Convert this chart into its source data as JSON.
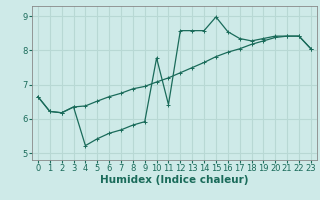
{
  "xlabel": "Humidex (Indice chaleur)",
  "bg_color": "#ceeae8",
  "grid_color": "#b8d8d4",
  "line_color": "#1a6b5a",
  "spine_color": "#888888",
  "xlim": [
    -0.5,
    23.5
  ],
  "ylim": [
    4.8,
    9.3
  ],
  "xticks": [
    0,
    1,
    2,
    3,
    4,
    5,
    6,
    7,
    8,
    9,
    10,
    11,
    12,
    13,
    14,
    15,
    16,
    17,
    18,
    19,
    20,
    21,
    22,
    23
  ],
  "yticks": [
    5,
    6,
    7,
    8,
    9
  ],
  "line1_x": [
    0,
    1,
    2,
    3,
    4,
    5,
    6,
    7,
    8,
    9,
    10,
    11,
    12,
    13,
    14,
    15,
    16,
    17,
    18,
    19,
    20,
    21,
    22,
    23
  ],
  "line1_y": [
    6.65,
    6.22,
    6.18,
    6.35,
    6.38,
    6.52,
    6.65,
    6.75,
    6.88,
    6.95,
    7.08,
    7.2,
    7.35,
    7.5,
    7.65,
    7.82,
    7.95,
    8.05,
    8.18,
    8.28,
    8.38,
    8.42,
    8.42,
    8.05
  ],
  "line2_x": [
    0,
    1,
    2,
    3,
    4,
    5,
    6,
    7,
    8,
    9,
    10,
    11,
    12,
    13,
    14,
    15,
    16,
    17,
    18,
    19,
    20,
    21,
    22,
    23
  ],
  "line2_y": [
    6.65,
    6.22,
    6.18,
    6.35,
    5.22,
    5.42,
    5.58,
    5.68,
    5.82,
    5.92,
    7.78,
    6.42,
    8.58,
    8.58,
    8.58,
    8.98,
    8.55,
    8.35,
    8.28,
    8.35,
    8.42,
    8.42,
    8.42,
    8.05
  ],
  "tick_fontsize": 6.0,
  "xlabel_fontsize": 7.5,
  "xlabel_fontweight": "bold"
}
